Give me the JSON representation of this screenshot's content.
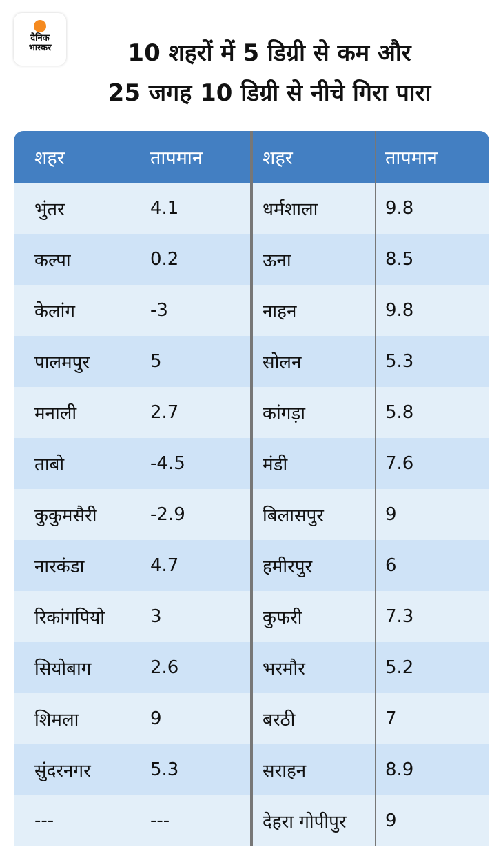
{
  "logo": {
    "line1": "दैनिक",
    "line2": "भास्कर"
  },
  "title": {
    "line1": "10 शहरों में 5 डिग्री से कम और",
    "line2": "25 जगह 10 डिग्री से नीचे गिरा पारा"
  },
  "headers": [
    "शहर",
    "तापमान",
    "शहर",
    "तापमान"
  ],
  "rows": [
    [
      "भुंतर",
      "4.1",
      "धर्मशाला",
      "9.8"
    ],
    [
      "कल्पा",
      "0.2",
      "ऊना",
      "8.5"
    ],
    [
      "केलांग",
      "-3",
      "नाहन",
      "9.8"
    ],
    [
      "पालमपुर",
      "5",
      "सोलन",
      "5.3"
    ],
    [
      "मनाली",
      "2.7",
      "कांगड़ा",
      "5.8"
    ],
    [
      "ताबो",
      "-4.5",
      "मंडी",
      "7.6"
    ],
    [
      "कुकुमसैरी",
      "-2.9",
      "बिलासपुर",
      "9"
    ],
    [
      "नारकंडा",
      "4.7",
      "हमीरपुर",
      "6"
    ],
    [
      "रिकांगपियो",
      "3",
      "कुफरी",
      "7.3"
    ],
    [
      "सियोबाग",
      "2.6",
      "भरमौर",
      "5.2"
    ],
    [
      "शिमला",
      "9",
      "बरठी",
      "7"
    ],
    [
      "सुंदरनगर",
      "5.3",
      "सराहन",
      "8.9"
    ],
    [
      "---",
      "---",
      "देहरा गोपीपुर",
      "9"
    ]
  ],
  "colors": {
    "header": "#437fc2",
    "row_light": "#e3eff9",
    "row_dark": "#cfe3f7",
    "logo_sun": "#f58a1f"
  }
}
